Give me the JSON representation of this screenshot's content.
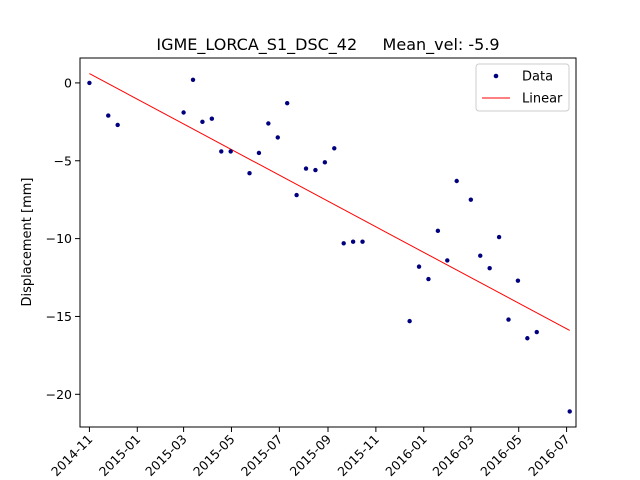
{
  "chart_data": {
    "type": "scatter",
    "title": "IGME_LORCA_S1_DSC_42     Mean_vel: -5.9",
    "xlabel": "",
    "ylabel": "Displacement [mm]",
    "x_tick_labels": [
      "2014-11",
      "2015-01",
      "2015-03",
      "2015-05",
      "2015-07",
      "2015-09",
      "2015-11",
      "2016-01",
      "2016-03",
      "2016-05",
      "2016-07"
    ],
    "x_tick_dates": [
      "2014-11-01",
      "2015-01-01",
      "2015-03-01",
      "2015-05-01",
      "2015-07-01",
      "2015-09-01",
      "2015-11-01",
      "2016-01-01",
      "2016-03-01",
      "2016-05-01",
      "2016-07-01"
    ],
    "y_ticks": [
      0,
      -5,
      -10,
      -15,
      -20
    ],
    "y_tick_labels": [
      "0",
      "−5",
      "−10",
      "−15",
      "−20"
    ],
    "xlim": [
      "2014-10-20",
      "2016-07-13"
    ],
    "ylim": [
      -22.1,
      1.6
    ],
    "grid": false,
    "legend_position": "top-right",
    "series": [
      {
        "name": "Data",
        "style": "points",
        "color": "#00007f",
        "points": [
          {
            "x": "2014-11-01",
            "y": 0.0
          },
          {
            "x": "2014-11-25",
            "y": -2.1
          },
          {
            "x": "2014-12-07",
            "y": -2.7
          },
          {
            "x": "2015-03-01",
            "y": -1.9
          },
          {
            "x": "2015-03-13",
            "y": 0.2
          },
          {
            "x": "2015-03-25",
            "y": -2.5
          },
          {
            "x": "2015-04-06",
            "y": -2.3
          },
          {
            "x": "2015-04-18",
            "y": -4.4
          },
          {
            "x": "2015-04-30",
            "y": -4.4
          },
          {
            "x": "2015-05-24",
            "y": -5.8
          },
          {
            "x": "2015-06-05",
            "y": -4.5
          },
          {
            "x": "2015-06-17",
            "y": -2.6
          },
          {
            "x": "2015-06-29",
            "y": -3.5
          },
          {
            "x": "2015-07-11",
            "y": -1.3
          },
          {
            "x": "2015-07-23",
            "y": -7.2
          },
          {
            "x": "2015-08-04",
            "y": -5.5
          },
          {
            "x": "2015-08-16",
            "y": -5.6
          },
          {
            "x": "2015-08-28",
            "y": -5.1
          },
          {
            "x": "2015-09-09",
            "y": -4.2
          },
          {
            "x": "2015-09-21",
            "y": -10.3
          },
          {
            "x": "2015-10-03",
            "y": -10.2
          },
          {
            "x": "2015-10-15",
            "y": -10.2
          },
          {
            "x": "2015-12-14",
            "y": -15.3
          },
          {
            "x": "2015-12-26",
            "y": -11.8
          },
          {
            "x": "2016-01-07",
            "y": -12.6
          },
          {
            "x": "2016-01-19",
            "y": -9.5
          },
          {
            "x": "2016-01-31",
            "y": -11.4
          },
          {
            "x": "2016-02-12",
            "y": -6.3
          },
          {
            "x": "2016-03-01",
            "y": -7.5
          },
          {
            "x": "2016-03-13",
            "y": -11.1
          },
          {
            "x": "2016-03-25",
            "y": -11.9
          },
          {
            "x": "2016-04-06",
            "y": -9.9
          },
          {
            "x": "2016-04-18",
            "y": -15.2
          },
          {
            "x": "2016-04-30",
            "y": -12.7
          },
          {
            "x": "2016-05-12",
            "y": -16.4
          },
          {
            "x": "2016-05-24",
            "y": -16.0
          },
          {
            "x": "2016-07-05",
            "y": -21.1
          }
        ]
      },
      {
        "name": "Linear",
        "style": "line",
        "color": "#ff0000",
        "points": [
          {
            "x": "2014-11-01",
            "y": 0.6
          },
          {
            "x": "2016-07-05",
            "y": -15.9
          }
        ]
      }
    ]
  }
}
